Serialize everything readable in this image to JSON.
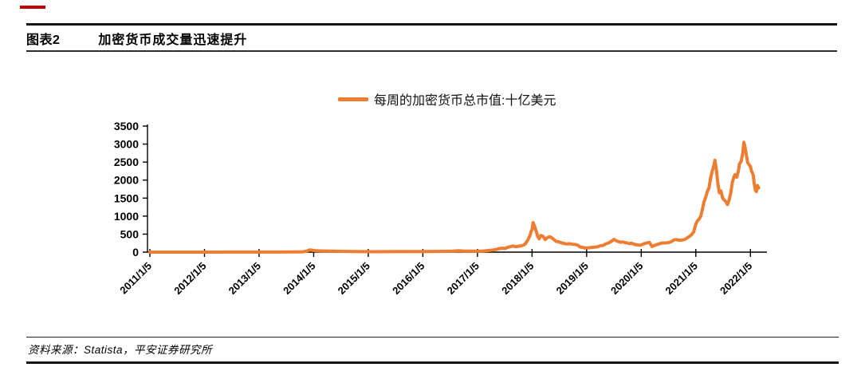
{
  "header": {
    "figure_label": "图表2",
    "figure_title": "加密货币成交量迅速提升"
  },
  "legend": {
    "label": "每周的加密货币总市值:十亿美元"
  },
  "footer": {
    "source": "资料来源：Statista，平安证券研究所"
  },
  "colors": {
    "line": "#ED7D31",
    "axis": "#000000",
    "accent_dash": "#C00000"
  },
  "chart_data": {
    "type": "line",
    "title": "加密货币成交量迅速提升",
    "xlabel": "",
    "ylabel": "",
    "grid": false,
    "legend_position": "top-center",
    "ylim": [
      0,
      3500
    ],
    "y_ticks": [
      0,
      500,
      1000,
      1500,
      2000,
      2500,
      3000,
      3500
    ],
    "x_ticks": [
      {
        "t": 2011,
        "label": "2011/1/5"
      },
      {
        "t": 2012,
        "label": "2012/1/5"
      },
      {
        "t": 2013,
        "label": "2013/1/5"
      },
      {
        "t": 2014,
        "label": "2014/1/5"
      },
      {
        "t": 2015,
        "label": "2015/1/5"
      },
      {
        "t": 2016,
        "label": "2016/1/5"
      },
      {
        "t": 2017,
        "label": "2017/1/5"
      },
      {
        "t": 2018,
        "label": "2018/1/5"
      },
      {
        "t": 2019,
        "label": "2019/1/5"
      },
      {
        "t": 2020,
        "label": "2020/1/5"
      },
      {
        "t": 2021,
        "label": "2021/1/5"
      },
      {
        "t": 2022,
        "label": "2022/1/5"
      }
    ],
    "series": [
      {
        "name": "每周的加密货币总市值:十亿美元",
        "color": "#ED7D31",
        "points": [
          [
            2011.0,
            0.5
          ],
          [
            2011.5,
            1
          ],
          [
            2012.0,
            1
          ],
          [
            2012.5,
            1.2
          ],
          [
            2013.0,
            1.5
          ],
          [
            2013.3,
            2
          ],
          [
            2013.6,
            4
          ],
          [
            2013.8,
            8
          ],
          [
            2013.88,
            30
          ],
          [
            2013.92,
            60
          ],
          [
            2013.96,
            55
          ],
          [
            2014.0,
            45
          ],
          [
            2014.05,
            40
          ],
          [
            2014.1,
            35
          ],
          [
            2014.2,
            30
          ],
          [
            2014.4,
            25
          ],
          [
            2014.6,
            20
          ],
          [
            2014.8,
            18
          ],
          [
            2015.0,
            14
          ],
          [
            2015.1,
            12
          ],
          [
            2015.3,
            13
          ],
          [
            2015.6,
            15
          ],
          [
            2015.9,
            17
          ],
          [
            2016.0,
            18
          ],
          [
            2016.2,
            20
          ],
          [
            2016.4,
            22
          ],
          [
            2016.55,
            28
          ],
          [
            2016.65,
            40
          ],
          [
            2016.75,
            32
          ],
          [
            2016.9,
            28
          ],
          [
            2017.0,
            25
          ],
          [
            2017.1,
            30
          ],
          [
            2017.2,
            45
          ],
          [
            2017.3,
            60
          ],
          [
            2017.38,
            90
          ],
          [
            2017.45,
            110
          ],
          [
            2017.5,
            100
          ],
          [
            2017.55,
            130
          ],
          [
            2017.6,
            150
          ],
          [
            2017.65,
            170
          ],
          [
            2017.7,
            150
          ],
          [
            2017.75,
            165
          ],
          [
            2017.8,
            175
          ],
          [
            2017.85,
            200
          ],
          [
            2017.88,
            240
          ],
          [
            2017.92,
            330
          ],
          [
            2017.96,
            450
          ],
          [
            2017.98,
            560
          ],
          [
            2018.0,
            620
          ],
          [
            2018.02,
            820
          ],
          [
            2018.05,
            700
          ],
          [
            2018.08,
            560
          ],
          [
            2018.1,
            450
          ],
          [
            2018.13,
            370
          ],
          [
            2018.16,
            460
          ],
          [
            2018.2,
            440
          ],
          [
            2018.24,
            350
          ],
          [
            2018.28,
            400
          ],
          [
            2018.32,
            430
          ],
          [
            2018.36,
            400
          ],
          [
            2018.4,
            350
          ],
          [
            2018.44,
            300
          ],
          [
            2018.48,
            290
          ],
          [
            2018.52,
            270
          ],
          [
            2018.56,
            250
          ],
          [
            2018.6,
            235
          ],
          [
            2018.64,
            225
          ],
          [
            2018.68,
            235
          ],
          [
            2018.72,
            225
          ],
          [
            2018.76,
            215
          ],
          [
            2018.8,
            210
          ],
          [
            2018.84,
            190
          ],
          [
            2018.87,
            150
          ],
          [
            2018.9,
            135
          ],
          [
            2018.94,
            130
          ],
          [
            2018.97,
            115
          ],
          [
            2019.0,
            120
          ],
          [
            2019.05,
            122
          ],
          [
            2019.1,
            133
          ],
          [
            2019.15,
            140
          ],
          [
            2019.2,
            148
          ],
          [
            2019.25,
            178
          ],
          [
            2019.3,
            185
          ],
          [
            2019.35,
            230
          ],
          [
            2019.4,
            255
          ],
          [
            2019.45,
            300
          ],
          [
            2019.5,
            355
          ],
          [
            2019.54,
            320
          ],
          [
            2019.58,
            295
          ],
          [
            2019.62,
            275
          ],
          [
            2019.66,
            285
          ],
          [
            2019.7,
            265
          ],
          [
            2019.74,
            255
          ],
          [
            2019.78,
            235
          ],
          [
            2019.82,
            245
          ],
          [
            2019.86,
            225
          ],
          [
            2019.9,
            205
          ],
          [
            2019.95,
            195
          ],
          [
            2020.0,
            200
          ],
          [
            2020.05,
            235
          ],
          [
            2020.1,
            255
          ],
          [
            2020.15,
            268
          ],
          [
            2020.2,
            155
          ],
          [
            2020.24,
            185
          ],
          [
            2020.28,
            205
          ],
          [
            2020.32,
            225
          ],
          [
            2020.36,
            245
          ],
          [
            2020.4,
            255
          ],
          [
            2020.45,
            258
          ],
          [
            2020.5,
            265
          ],
          [
            2020.55,
            290
          ],
          [
            2020.6,
            340
          ],
          [
            2020.64,
            350
          ],
          [
            2020.68,
            335
          ],
          [
            2020.72,
            330
          ],
          [
            2020.76,
            340
          ],
          [
            2020.8,
            355
          ],
          [
            2020.84,
            395
          ],
          [
            2020.88,
            435
          ],
          [
            2020.92,
            480
          ],
          [
            2020.96,
            560
          ],
          [
            2021.0,
            780
          ],
          [
            2021.03,
            870
          ],
          [
            2021.06,
            920
          ],
          [
            2021.09,
            1000
          ],
          [
            2021.12,
            1180
          ],
          [
            2021.15,
            1400
          ],
          [
            2021.18,
            1520
          ],
          [
            2021.21,
            1680
          ],
          [
            2021.24,
            1780
          ],
          [
            2021.27,
            2050
          ],
          [
            2021.3,
            2250
          ],
          [
            2021.33,
            2400
          ],
          [
            2021.35,
            2550
          ],
          [
            2021.38,
            2250
          ],
          [
            2021.4,
            1950
          ],
          [
            2021.43,
            1650
          ],
          [
            2021.46,
            1700
          ],
          [
            2021.49,
            1500
          ],
          [
            2021.52,
            1450
          ],
          [
            2021.55,
            1400
          ],
          [
            2021.58,
            1320
          ],
          [
            2021.61,
            1450
          ],
          [
            2021.64,
            1650
          ],
          [
            2021.67,
            1950
          ],
          [
            2021.7,
            2100
          ],
          [
            2021.72,
            2150
          ],
          [
            2021.75,
            2080
          ],
          [
            2021.78,
            2250
          ],
          [
            2021.8,
            2450
          ],
          [
            2021.83,
            2520
          ],
          [
            2021.86,
            2750
          ],
          [
            2021.88,
            3050
          ],
          [
            2021.9,
            2920
          ],
          [
            2021.92,
            2750
          ],
          [
            2021.95,
            2480
          ],
          [
            2021.98,
            2420
          ],
          [
            2022.0,
            2380
          ],
          [
            2022.02,
            2250
          ],
          [
            2022.05,
            2150
          ],
          [
            2022.07,
            1900
          ],
          [
            2022.09,
            1720
          ],
          [
            2022.11,
            1680
          ],
          [
            2022.13,
            1850
          ],
          [
            2022.15,
            1780
          ]
        ]
      }
    ]
  }
}
